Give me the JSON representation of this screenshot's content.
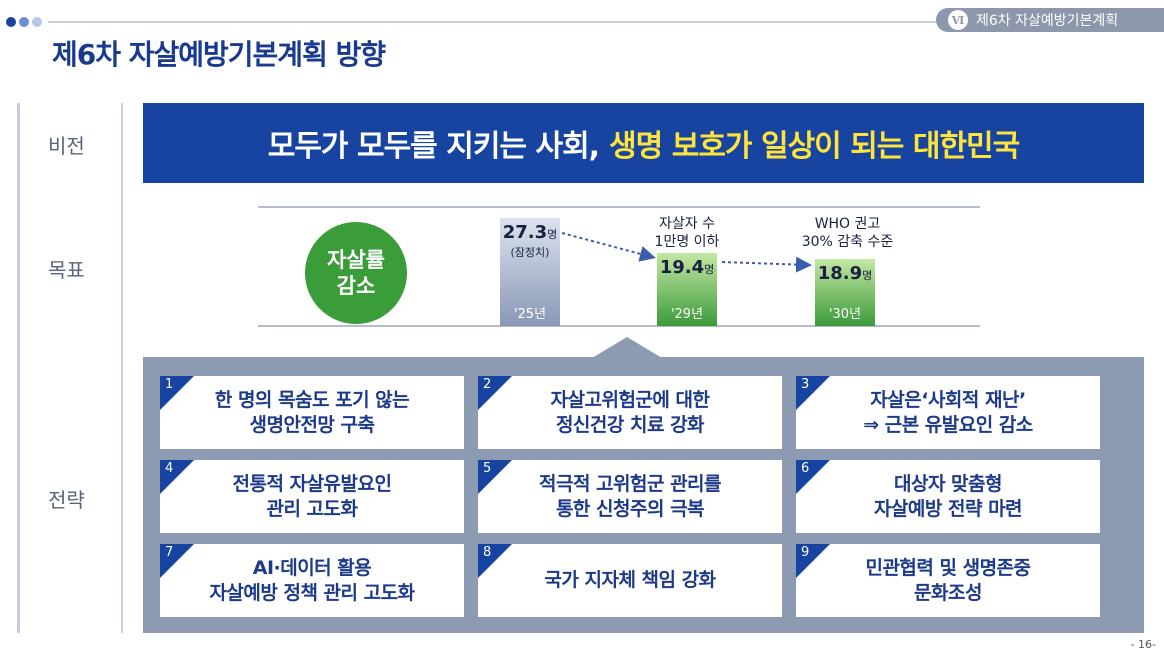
{
  "header": {
    "section_badge": "Ⅵ",
    "section_title": "제6차 자살예방기본계획",
    "page_title": "제6차 자살예방기본계획 방향"
  },
  "row_labels": {
    "vision": "비전",
    "goal": "목표",
    "strategy": "전략"
  },
  "vision": {
    "main": "모두가 모두를 지키는 사회,",
    "highlight": "생명 보호가 일상이 되는 대한민국"
  },
  "goal": {
    "circle_line1": "자살률",
    "circle_line2": "감소",
    "bars": [
      {
        "value": "27.3",
        "unit": "명",
        "note": "(잠정치)",
        "year": "'25년"
      },
      {
        "value": "19.4",
        "unit": "명",
        "note": "",
        "year": "'29년"
      },
      {
        "value": "18.9",
        "unit": "명",
        "note": "",
        "year": "'30년"
      }
    ],
    "target1_line1": "자살자 수",
    "target1_line2": "1만명 이하",
    "target2_line1": "WHO 권고",
    "target2_line2": "30% 감축 수준"
  },
  "strategies": [
    {
      "num": "1",
      "line1": "한 명의 목숨도 포기 않는",
      "line2": "생명안전망 구축"
    },
    {
      "num": "2",
      "line1": "자살고위험군에 대한",
      "line2": "정신건강 치료 강화"
    },
    {
      "num": "3",
      "line1": "자살은‘사회적 재난’",
      "line2": "⇒ 근본 유발요인 감소"
    },
    {
      "num": "4",
      "line1": "전통적 자살유발요인",
      "line2": "관리 고도화"
    },
    {
      "num": "5",
      "line1": "적극적 고위험군 관리를",
      "line2": "통한 신청주의 극복"
    },
    {
      "num": "6",
      "line1": "대상자 맞춤형",
      "line2": "자살예방 전략 마련"
    },
    {
      "num": "7",
      "line1": "AI·데이터 활용",
      "line2": "자살예방 정책 관리 고도화"
    },
    {
      "num": "8",
      "line1": "국가 지자체 책임 강화",
      "line2": ""
    },
    {
      "num": "9",
      "line1": "민관협력 및 생명존중",
      "line2": "문화조성"
    }
  ],
  "page_number": "- 16-",
  "colors": {
    "primary_blue": "#1644a0",
    "highlight_yellow": "#ffe53b",
    "green": "#3a9d3a",
    "panel_gray": "#8c9ab2"
  }
}
